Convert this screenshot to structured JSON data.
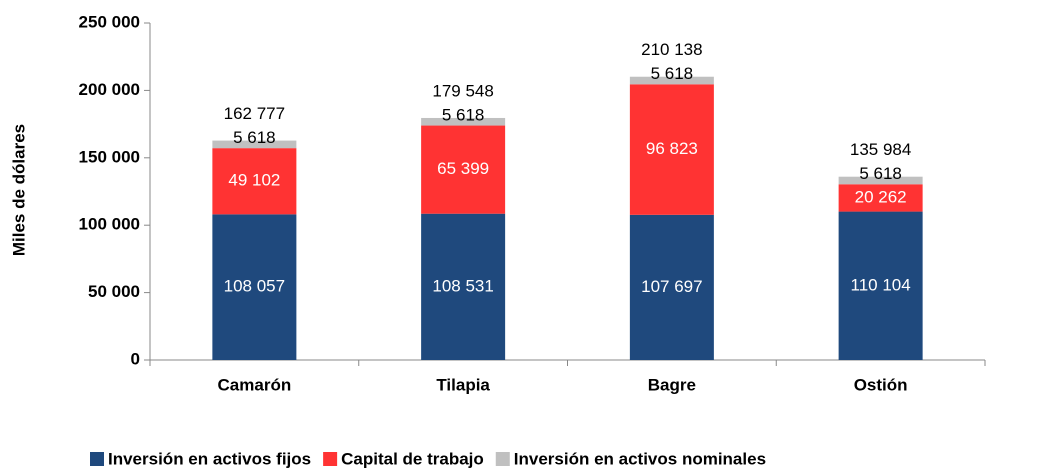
{
  "chart_data": {
    "type": "stacked_bar",
    "y_label": "Miles de dólares",
    "categories": [
      "Camarón",
      "Tilapia",
      "Bagre",
      "Ostión"
    ],
    "series": [
      {
        "name": "Inversión en activos fijos",
        "color": "#1f497d",
        "values": [
          108057,
          108531,
          107697,
          110104
        ],
        "value_labels": [
          "108 057",
          "108 531",
          "107 697",
          "110 104"
        ]
      },
      {
        "name": "Capital de trabajo",
        "color": "#ff3333",
        "values": [
          49102,
          65399,
          96823,
          20262
        ],
        "value_labels": [
          "49 102",
          "65 399",
          "96 823",
          "20 262"
        ]
      },
      {
        "name": "Inversión en activos nominales",
        "color": "#c0c0c0",
        "values": [
          5618,
          5618,
          5618,
          5618
        ],
        "value_labels": [
          "5 618",
          "5 618",
          "5 618",
          "5 618"
        ]
      }
    ],
    "totals": [
      162777,
      179548,
      210138,
      135984
    ],
    "total_labels": [
      "162 777",
      "179 548",
      "210 138",
      "135 984"
    ],
    "ylim": [
      0,
      250000
    ],
    "yticks": [
      0,
      {
        "value": 50000,
        "label": "50 000"
      },
      {
        "value": 100000,
        "label": "100 000"
      },
      {
        "value": 150000,
        "label": "150 000"
      },
      {
        "value": 200000,
        "label": "200 000"
      },
      {
        "value": 250000,
        "label": "250 000"
      }
    ],
    "legend": "bottom"
  }
}
